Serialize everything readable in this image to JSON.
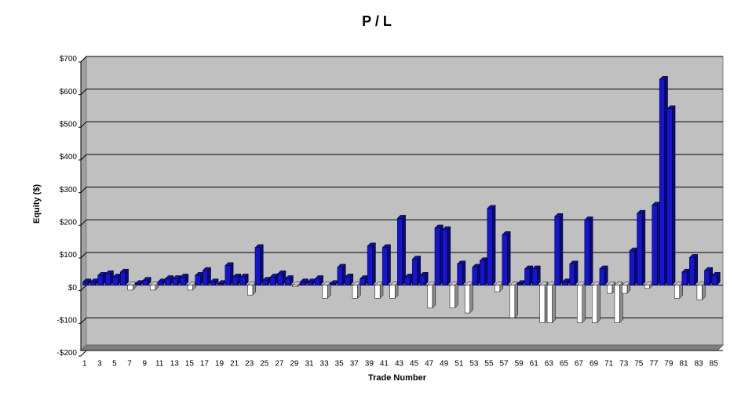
{
  "chart_data": {
    "type": "bar",
    "title": "P / L",
    "x_label": "Trade Number",
    "y_label": "Equity ($)",
    "categories": [
      1,
      null,
      3,
      null,
      5,
      null,
      7,
      null,
      9,
      null,
      11,
      null,
      13,
      null,
      15,
      null,
      17,
      null,
      19,
      null,
      21,
      null,
      23,
      null,
      25,
      null,
      27,
      null,
      29,
      null,
      31,
      null,
      33,
      null,
      35,
      null,
      37,
      null,
      39,
      null,
      41,
      null,
      43,
      null,
      45,
      null,
      47,
      null,
      49,
      null,
      51,
      null,
      53,
      null,
      55,
      null,
      57,
      null,
      59,
      null,
      61,
      null,
      63,
      null,
      65,
      null,
      67,
      null,
      69,
      null,
      71,
      null,
      73,
      null,
      75,
      null,
      77,
      null,
      79,
      null,
      81,
      null,
      83,
      null,
      85
    ],
    "values": [
      10,
      10,
      30,
      35,
      25,
      40,
      -15,
      5,
      15,
      -15,
      10,
      20,
      20,
      25,
      -15,
      30,
      45,
      10,
      5,
      60,
      25,
      25,
      -30,
      115,
      15,
      25,
      35,
      20,
      -5,
      10,
      10,
      20,
      -40,
      5,
      55,
      25,
      -40,
      20,
      120,
      -40,
      115,
      -40,
      205,
      25,
      80,
      30,
      -70,
      175,
      170,
      -70,
      65,
      -85,
      55,
      75,
      235,
      -20,
      155,
      -100,
      5,
      50,
      50,
      -115,
      -115,
      210,
      10,
      65,
      -115,
      200,
      -115,
      50,
      -25,
      -115,
      -25,
      105,
      220,
      -10,
      245,
      630,
      540,
      -40,
      40,
      85,
      -45,
      45,
      30
    ],
    "color": "#1414d2",
    "negative_color": "#ffffff",
    "negative_label_color": "#ff0000",
    "ylim": [
      -200,
      700
    ],
    "yticks": [
      {
        "value": -200,
        "label": "-$200"
      },
      {
        "value": -100,
        "label": "-$100"
      },
      {
        "value": 0,
        "label": "$0"
      },
      {
        "value": 100,
        "label": "$100"
      },
      {
        "value": 200,
        "label": "$200"
      },
      {
        "value": 300,
        "label": "$300"
      },
      {
        "value": 400,
        "label": "$400"
      },
      {
        "value": 500,
        "label": "$500"
      },
      {
        "value": 600,
        "label": "$600"
      },
      {
        "value": 700,
        "label": "$700"
      }
    ],
    "grid": true
  }
}
